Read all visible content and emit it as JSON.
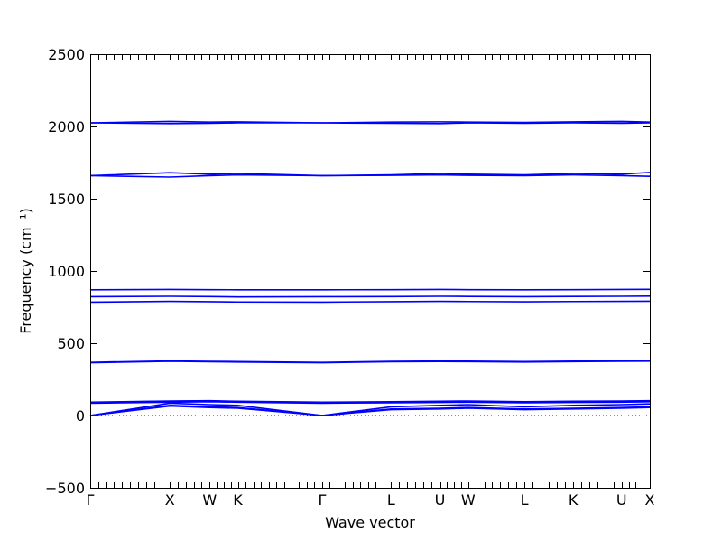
{
  "chart_data": {
    "type": "line",
    "title": "",
    "xlabel": "Wave vector",
    "ylabel": "Frequency (cm⁻¹)",
    "ylim": [
      -500,
      2500
    ],
    "yticks": [
      -500,
      0,
      500,
      1000,
      1500,
      2000,
      2500
    ],
    "grid": false,
    "legend": "none",
    "line_color": "#0000ff",
    "zero_reference": 0,
    "x_points": [
      {
        "label": "Γ",
        "x": 0.0
      },
      {
        "label": "X",
        "x": 1.0
      },
      {
        "label": "W",
        "x": 1.5
      },
      {
        "label": "K",
        "x": 1.854
      },
      {
        "label": "Γ",
        "x": 2.914
      },
      {
        "label": "L",
        "x": 3.78
      },
      {
        "label": "U",
        "x": 4.394
      },
      {
        "label": "W",
        "x": 4.748
      },
      {
        "label": "L",
        "x": 5.455
      },
      {
        "label": "K",
        "x": 6.067
      },
      {
        "label": "U",
        "x": 6.676
      },
      {
        "label": "X",
        "x": 7.03
      }
    ],
    "series": [
      {
        "values": [
          0,
          70,
          60,
          55,
          0,
          45,
          50,
          55,
          45,
          50,
          55,
          60
        ]
      },
      {
        "values": [
          0,
          65,
          55,
          50,
          0,
          40,
          45,
          50,
          40,
          45,
          50,
          55
        ]
      },
      {
        "values": [
          0,
          85,
          75,
          70,
          0,
          60,
          70,
          75,
          60,
          70,
          75,
          80
        ]
      },
      {
        "values": [
          85,
          92,
          95,
          92,
          85,
          88,
          90,
          92,
          88,
          90,
          92,
          95
        ]
      },
      {
        "values": [
          90,
          98,
          100,
          96,
          90,
          92,
          95,
          98,
          92,
          95,
          98,
          100
        ]
      },
      {
        "values": [
          92,
          100,
          102,
          98,
          92,
          95,
          98,
          100,
          95,
          98,
          100,
          102
        ]
      },
      {
        "values": [
          365,
          375,
          372,
          370,
          365,
          372,
          374,
          373,
          370,
          373,
          375,
          376
        ]
      },
      {
        "values": [
          368,
          378,
          375,
          373,
          368,
          375,
          377,
          376,
          373,
          376,
          378,
          379
        ]
      },
      {
        "values": [
          785,
          790,
          788,
          786,
          785,
          788,
          790,
          789,
          787,
          789,
          790,
          791
        ]
      },
      {
        "values": [
          822,
          825,
          823,
          821,
          822,
          823,
          825,
          824,
          822,
          824,
          825,
          826
        ]
      },
      {
        "values": [
          870,
          872,
          871,
          870,
          870,
          871,
          872,
          871,
          870,
          871,
          872,
          873
        ]
      },
      {
        "values": [
          1660,
          1680,
          1670,
          1675,
          1660,
          1665,
          1675,
          1670,
          1665,
          1675,
          1670,
          1682
        ]
      },
      {
        "values": [
          1660,
          1650,
          1660,
          1665,
          1660,
          1662,
          1665,
          1662,
          1660,
          1665,
          1660,
          1655
        ]
      },
      {
        "values": [
          2025,
          2035,
          2030,
          2032,
          2025,
          2030,
          2032,
          2030,
          2028,
          2032,
          2035,
          2030
        ]
      },
      {
        "values": [
          2025,
          2020,
          2022,
          2025,
          2025,
          2022,
          2020,
          2025,
          2022,
          2025,
          2022,
          2025
        ]
      }
    ]
  }
}
